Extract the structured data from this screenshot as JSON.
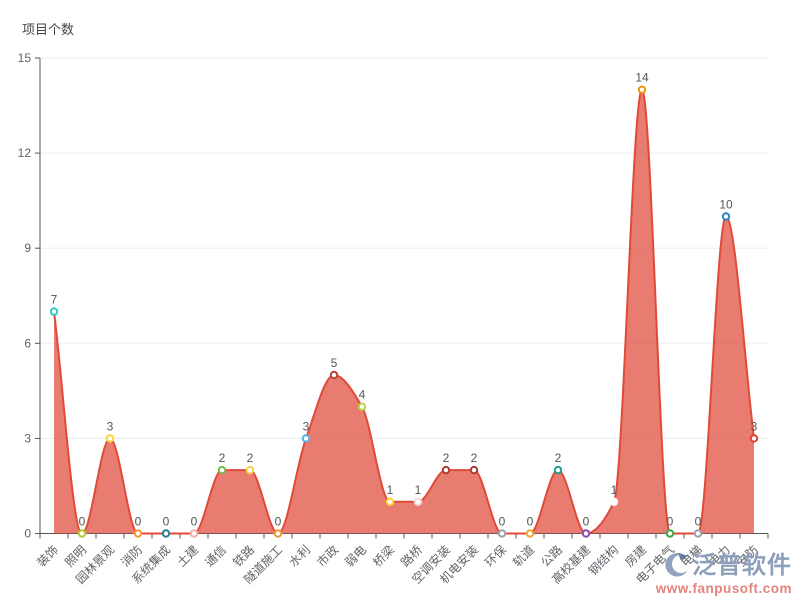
{
  "title": "项目个数",
  "watermark": {
    "brand": "泛普软件",
    "url": "www.fanpusoft.com",
    "brand_color": "#8e9fbb",
    "url_color": "#e4837c"
  },
  "chart_data": {
    "type": "area",
    "title": "项目个数",
    "categories": [
      "装饰",
      "照明",
      "园林景观",
      "消防",
      "系统集成",
      "土建",
      "通信",
      "铁路",
      "隧道施工",
      "水利",
      "市政",
      "弱电",
      "桥梁",
      "路桥",
      "空调安装",
      "机电安装",
      "环保",
      "轨道",
      "公路",
      "高校基建",
      "钢结构",
      "房建",
      "电子电气",
      "电梯",
      "电力",
      "安防"
    ],
    "values": [
      7,
      0,
      3,
      0,
      0,
      0,
      2,
      2,
      0,
      3,
      5,
      4,
      1,
      1,
      2,
      2,
      0,
      0,
      2,
      0,
      1,
      14,
      0,
      0,
      10,
      3
    ],
    "marker_colors": [
      "#2fc9c4",
      "#b3cb33",
      "#ffd43b",
      "#f59a3a",
      "#2b7f93",
      "#f6b0a7",
      "#71bd45",
      "#f6d34a",
      "#f09b38",
      "#55b2e8",
      "#bb4338",
      "#b9d44a",
      "#ffd23e",
      "#f6d8d2",
      "#ac3c31",
      "#ac3c31",
      "#9ba3ab",
      "#f0a431",
      "#1d9e90",
      "#8f4bb5",
      "#ffffff",
      "#f0930f",
      "#39a845",
      "#9ba3ab",
      "#2e86c8",
      "#e0412f"
    ],
    "xlabel": "",
    "ylabel": "项目个数",
    "ylim": [
      0,
      15
    ],
    "y_ticks": [
      0,
      3,
      6,
      9,
      12,
      15
    ],
    "grid": true,
    "smooth": true,
    "legend": "none",
    "line_color": "#e04a39",
    "fill_color": "rgba(224,73,58,0.72)",
    "marker_fill": "#ffffff",
    "value_label_color": "#555555",
    "axis_color": "#555555",
    "axis_label_color": "#5f6368",
    "gridline_color": "#e7edf3"
  }
}
